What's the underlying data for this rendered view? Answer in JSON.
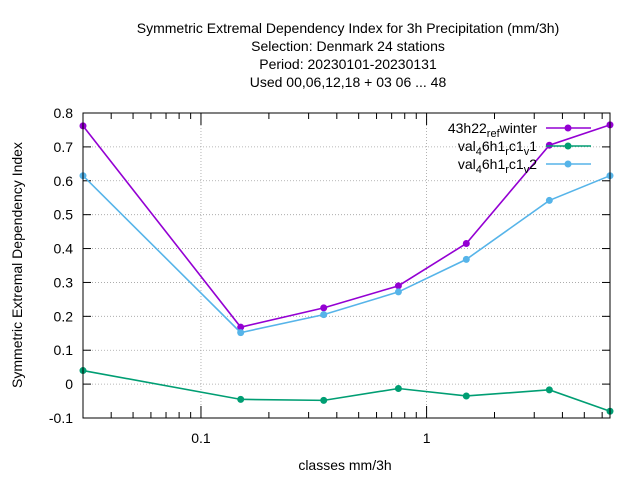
{
  "chart_data": {
    "type": "line",
    "title_lines": [
      "Symmetric Extremal Dependency Index  for 3h Precipitation (mm/3h)",
      "Selection: Denmark     24 stations",
      "Period: 20230101-20230131",
      "Used  00,06,12,18  + 03 06 ... 48"
    ],
    "xlabel": "classes mm/3h",
    "ylabel": "Symmetric Extremal Dependency Index",
    "x_scale": "log",
    "xlim": [
      0.03,
      6.5
    ],
    "ylim": [
      -0.1,
      0.8
    ],
    "x_ticks": [
      {
        "value": 0.1,
        "label": "0.1"
      },
      {
        "value": 1,
        "label": "1"
      }
    ],
    "y_ticks": [
      {
        "value": -0.1,
        "label": "-0.1"
      },
      {
        "value": 0,
        "label": "0"
      },
      {
        "value": 0.1,
        "label": "0.1"
      },
      {
        "value": 0.2,
        "label": "0.2"
      },
      {
        "value": 0.3,
        "label": "0.3"
      },
      {
        "value": 0.4,
        "label": "0.4"
      },
      {
        "value": 0.5,
        "label": "0.5"
      },
      {
        "value": 0.6,
        "label": "0.6"
      },
      {
        "value": 0.7,
        "label": "0.7"
      },
      {
        "value": 0.8,
        "label": "0.8"
      }
    ],
    "grid": true,
    "legend_position": "top-right",
    "x": [
      0.03,
      0.15,
      0.35,
      0.75,
      1.5,
      3.5,
      6.5
    ],
    "series": [
      {
        "name": "43h22_ref_winter",
        "legend_main": "43h22",
        "legend_sub": "ref",
        "legend_main2": "w",
        "legend_tail": "inter",
        "color": "#9400d3",
        "values": [
          0.762,
          0.168,
          0.225,
          0.29,
          0.415,
          0.705,
          0.765
        ]
      },
      {
        "name": "val_46h1_rc1_v1",
        "legend_main": "val",
        "legend_sub": "4",
        "legend_main2": "6h1",
        "legend_sub2": "r",
        "legend_main3": "c1",
        "legend_sub3": "v",
        "legend_tail": "1",
        "color": "#009e73",
        "values": [
          0.04,
          -0.045,
          -0.048,
          -0.013,
          -0.035,
          -0.017,
          -0.08
        ]
      },
      {
        "name": "val_46h1_rc1_v2",
        "legend_main": "val",
        "legend_sub": "4",
        "legend_main2": "6h1",
        "legend_sub2": "r",
        "legend_main3": "c1",
        "legend_sub3": "v",
        "legend_tail": "2",
        "color": "#56b4e9",
        "values": [
          0.615,
          0.152,
          0.205,
          0.272,
          0.368,
          0.542,
          0.615
        ]
      }
    ]
  }
}
